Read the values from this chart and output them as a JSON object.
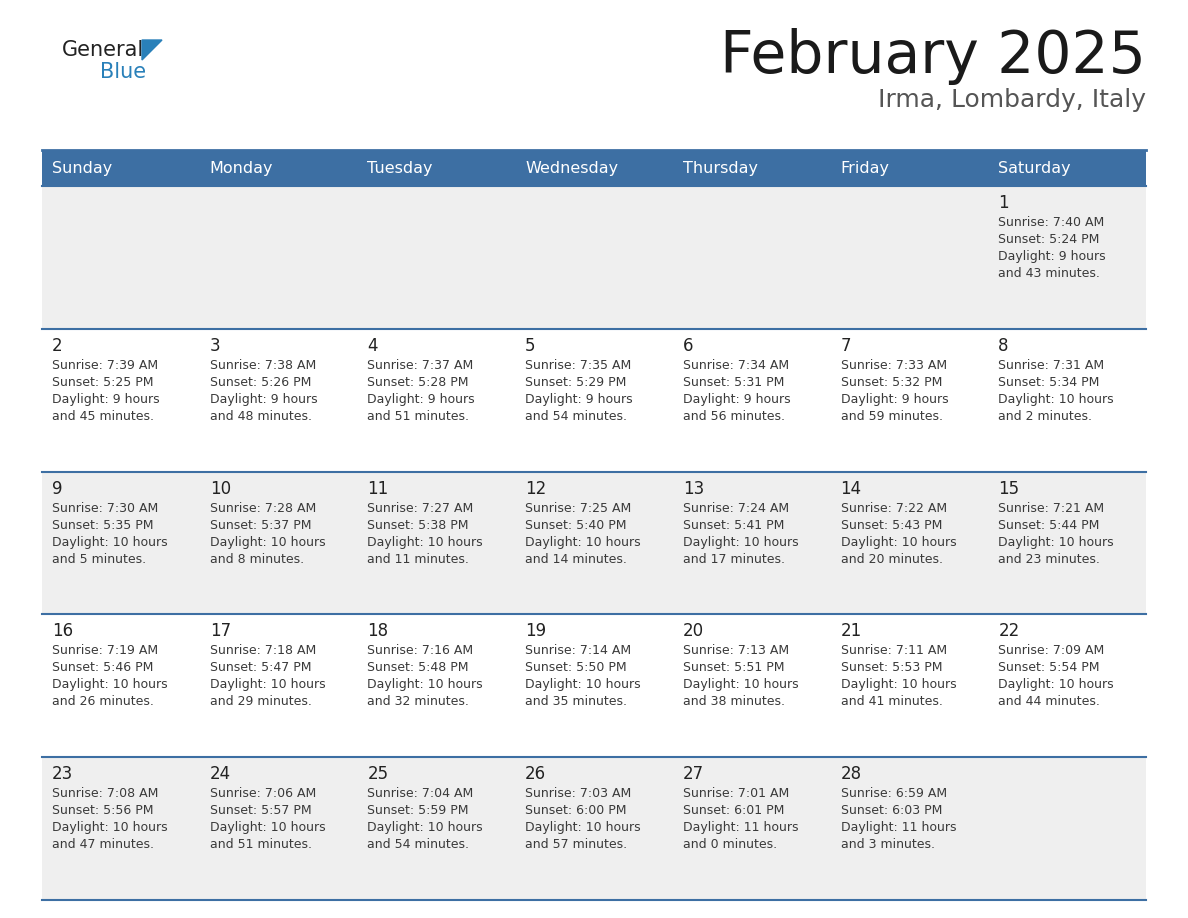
{
  "title": "February 2025",
  "subtitle": "Irma, Lombardy, Italy",
  "header_bg": "#3d6fa3",
  "header_text": "#ffffff",
  "day_names": [
    "Sunday",
    "Monday",
    "Tuesday",
    "Wednesday",
    "Thursday",
    "Friday",
    "Saturday"
  ],
  "row_bg_even": "#efefef",
  "row_bg_odd": "#ffffff",
  "divider_color": "#3d6fa3",
  "cell_text_color": "#3a3a3a",
  "day_num_color": "#222222",
  "title_color": "#1a1a1a",
  "subtitle_color": "#555555",
  "generalblue_black": "#222222",
  "generalblue_blue": "#2980b9",
  "calendar_data": [
    [
      {
        "day": null,
        "info": ""
      },
      {
        "day": null,
        "info": ""
      },
      {
        "day": null,
        "info": ""
      },
      {
        "day": null,
        "info": ""
      },
      {
        "day": null,
        "info": ""
      },
      {
        "day": null,
        "info": ""
      },
      {
        "day": 1,
        "info": "Sunrise: 7:40 AM\nSunset: 5:24 PM\nDaylight: 9 hours\nand 43 minutes."
      }
    ],
    [
      {
        "day": 2,
        "info": "Sunrise: 7:39 AM\nSunset: 5:25 PM\nDaylight: 9 hours\nand 45 minutes."
      },
      {
        "day": 3,
        "info": "Sunrise: 7:38 AM\nSunset: 5:26 PM\nDaylight: 9 hours\nand 48 minutes."
      },
      {
        "day": 4,
        "info": "Sunrise: 7:37 AM\nSunset: 5:28 PM\nDaylight: 9 hours\nand 51 minutes."
      },
      {
        "day": 5,
        "info": "Sunrise: 7:35 AM\nSunset: 5:29 PM\nDaylight: 9 hours\nand 54 minutes."
      },
      {
        "day": 6,
        "info": "Sunrise: 7:34 AM\nSunset: 5:31 PM\nDaylight: 9 hours\nand 56 minutes."
      },
      {
        "day": 7,
        "info": "Sunrise: 7:33 AM\nSunset: 5:32 PM\nDaylight: 9 hours\nand 59 minutes."
      },
      {
        "day": 8,
        "info": "Sunrise: 7:31 AM\nSunset: 5:34 PM\nDaylight: 10 hours\nand 2 minutes."
      }
    ],
    [
      {
        "day": 9,
        "info": "Sunrise: 7:30 AM\nSunset: 5:35 PM\nDaylight: 10 hours\nand 5 minutes."
      },
      {
        "day": 10,
        "info": "Sunrise: 7:28 AM\nSunset: 5:37 PM\nDaylight: 10 hours\nand 8 minutes."
      },
      {
        "day": 11,
        "info": "Sunrise: 7:27 AM\nSunset: 5:38 PM\nDaylight: 10 hours\nand 11 minutes."
      },
      {
        "day": 12,
        "info": "Sunrise: 7:25 AM\nSunset: 5:40 PM\nDaylight: 10 hours\nand 14 minutes."
      },
      {
        "day": 13,
        "info": "Sunrise: 7:24 AM\nSunset: 5:41 PM\nDaylight: 10 hours\nand 17 minutes."
      },
      {
        "day": 14,
        "info": "Sunrise: 7:22 AM\nSunset: 5:43 PM\nDaylight: 10 hours\nand 20 minutes."
      },
      {
        "day": 15,
        "info": "Sunrise: 7:21 AM\nSunset: 5:44 PM\nDaylight: 10 hours\nand 23 minutes."
      }
    ],
    [
      {
        "day": 16,
        "info": "Sunrise: 7:19 AM\nSunset: 5:46 PM\nDaylight: 10 hours\nand 26 minutes."
      },
      {
        "day": 17,
        "info": "Sunrise: 7:18 AM\nSunset: 5:47 PM\nDaylight: 10 hours\nand 29 minutes."
      },
      {
        "day": 18,
        "info": "Sunrise: 7:16 AM\nSunset: 5:48 PM\nDaylight: 10 hours\nand 32 minutes."
      },
      {
        "day": 19,
        "info": "Sunrise: 7:14 AM\nSunset: 5:50 PM\nDaylight: 10 hours\nand 35 minutes."
      },
      {
        "day": 20,
        "info": "Sunrise: 7:13 AM\nSunset: 5:51 PM\nDaylight: 10 hours\nand 38 minutes."
      },
      {
        "day": 21,
        "info": "Sunrise: 7:11 AM\nSunset: 5:53 PM\nDaylight: 10 hours\nand 41 minutes."
      },
      {
        "day": 22,
        "info": "Sunrise: 7:09 AM\nSunset: 5:54 PM\nDaylight: 10 hours\nand 44 minutes."
      }
    ],
    [
      {
        "day": 23,
        "info": "Sunrise: 7:08 AM\nSunset: 5:56 PM\nDaylight: 10 hours\nand 47 minutes."
      },
      {
        "day": 24,
        "info": "Sunrise: 7:06 AM\nSunset: 5:57 PM\nDaylight: 10 hours\nand 51 minutes."
      },
      {
        "day": 25,
        "info": "Sunrise: 7:04 AM\nSunset: 5:59 PM\nDaylight: 10 hours\nand 54 minutes."
      },
      {
        "day": 26,
        "info": "Sunrise: 7:03 AM\nSunset: 6:00 PM\nDaylight: 10 hours\nand 57 minutes."
      },
      {
        "day": 27,
        "info": "Sunrise: 7:01 AM\nSunset: 6:01 PM\nDaylight: 11 hours\nand 0 minutes."
      },
      {
        "day": 28,
        "info": "Sunrise: 6:59 AM\nSunset: 6:03 PM\nDaylight: 11 hours\nand 3 minutes."
      },
      {
        "day": null,
        "info": ""
      }
    ]
  ]
}
